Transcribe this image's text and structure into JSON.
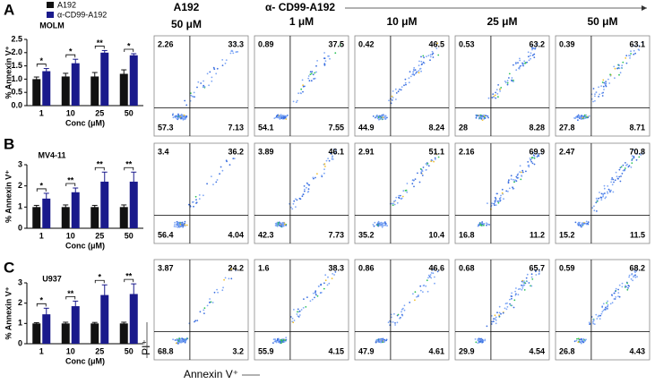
{
  "chart_data": [
    {
      "type": "bar",
      "panel_label": "A",
      "title": "MOLM",
      "xlabel": "Conc (μM)",
      "ylabel": "% Annexin V⁺",
      "categories": [
        "1",
        "10",
        "25",
        "50"
      ],
      "series": [
        {
          "name": "A192",
          "color": "#111111",
          "values": [
            1.0,
            1.1,
            1.1,
            1.2
          ],
          "errors": [
            0.08,
            0.12,
            0.15,
            0.15
          ]
        },
        {
          "name": "α-CD99-A192",
          "color": "#1a1a8c",
          "values": [
            1.3,
            1.6,
            2.0,
            1.9
          ],
          "errors": [
            0.1,
            0.15,
            0.08,
            0.06
          ]
        }
      ],
      "annotations": [
        "*",
        "*",
        "**",
        "*"
      ],
      "ylim": [
        0,
        2.5
      ],
      "yticks": [
        {
          "value": 0,
          "label": "0.0"
        },
        {
          "value": 0.5,
          "label": "0.5"
        },
        {
          "value": 1,
          "label": "1.0"
        },
        {
          "value": 1.5,
          "label": "1.5"
        },
        {
          "value": 2,
          "label": "2.0"
        },
        {
          "value": 2.5,
          "label": "2.5"
        }
      ],
      "legend": true
    },
    {
      "type": "bar",
      "panel_label": "B",
      "title": "MV4-11",
      "xlabel": "Conc (μM)",
      "ylabel": "% Annexin V⁺",
      "categories": [
        "1",
        "10",
        "25",
        "50"
      ],
      "series": [
        {
          "color": "#111111",
          "values": [
            1.0,
            1.0,
            1.0,
            1.0
          ],
          "errors": [
            0.08,
            0.1,
            0.08,
            0.1
          ]
        },
        {
          "color": "#1a1a8c",
          "values": [
            1.4,
            1.7,
            2.2,
            2.2
          ],
          "errors": [
            0.25,
            0.2,
            0.45,
            0.45
          ]
        }
      ],
      "annotations": [
        "*",
        "**",
        "**",
        "**"
      ],
      "ylim": [
        0,
        3
      ],
      "yticks": [
        0,
        1,
        2,
        3
      ],
      "legend": false
    },
    {
      "type": "bar",
      "panel_label": "C",
      "title": "U937",
      "xlabel": "Conc (μM)",
      "ylabel": "% Annexin V⁺",
      "categories": [
        "1",
        "10",
        "25",
        "50"
      ],
      "series": [
        {
          "color": "#111111",
          "values": [
            1.0,
            1.0,
            1.0,
            1.0
          ],
          "errors": [
            0.04,
            0.06,
            0.05,
            0.06
          ]
        },
        {
          "color": "#1a1a8c",
          "values": [
            1.45,
            1.85,
            2.4,
            2.45
          ],
          "errors": [
            0.3,
            0.25,
            0.5,
            0.5
          ]
        }
      ],
      "annotations": [
        "*",
        "**",
        "*",
        "**"
      ],
      "ylim": [
        0,
        3
      ],
      "yticks": [
        0,
        1,
        2,
        3
      ],
      "legend": false
    }
  ],
  "column_headers": {
    "control": "A192",
    "control_dose": "50 μM",
    "treatment": "α- CD99-A192",
    "doses": [
      "1 μM",
      "10 μM",
      "25 μM",
      "50 μM"
    ]
  },
  "flow_plots": [
    [
      [
        2.26,
        33.3,
        57.3,
        7.13
      ],
      [
        0.89,
        37.5,
        54.1,
        7.55
      ],
      [
        0.42,
        46.5,
        44.9,
        8.24
      ],
      [
        0.53,
        63.2,
        28,
        8.28
      ],
      [
        0.39,
        63.1,
        27.8,
        8.71
      ]
    ],
    [
      [
        3.4,
        36.2,
        56.4,
        4.04
      ],
      [
        3.89,
        46.1,
        42.3,
        7.73
      ],
      [
        2.91,
        51.1,
        35.2,
        10.4
      ],
      [
        2.16,
        69.9,
        16.8,
        11.2
      ],
      [
        2.47,
        70.8,
        15.2,
        11.5
      ]
    ],
    [
      [
        3.87,
        24.2,
        68.8,
        3.2
      ],
      [
        1.6,
        38.3,
        55.9,
        4.15
      ],
      [
        0.86,
        46.6,
        47.9,
        4.61
      ],
      [
        0.68,
        65.7,
        29.9,
        4.54
      ],
      [
        0.59,
        68.2,
        26.8,
        4.43
      ]
    ]
  ],
  "axis_labels": {
    "y": "PI⁺",
    "x": "Annexin V⁺"
  }
}
